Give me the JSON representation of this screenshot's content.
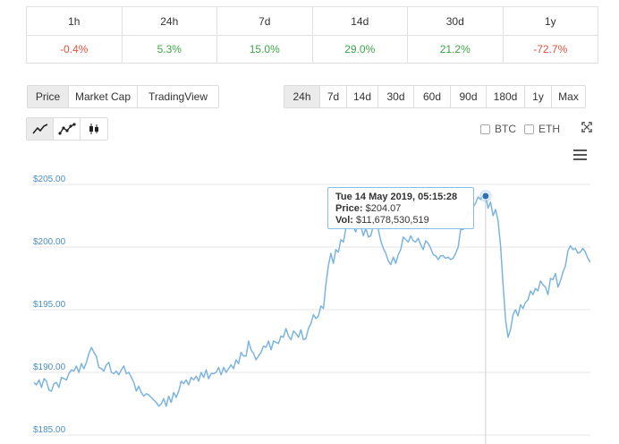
{
  "performance": {
    "headers": [
      "1h",
      "24h",
      "7d",
      "14d",
      "30d",
      "1y"
    ],
    "values": [
      "-0.4%",
      "5.3%",
      "15.0%",
      "29.0%",
      "21.2%",
      "-72.7%"
    ]
  },
  "metric_buttons": [
    "Price",
    "Market Cap",
    "TradingView"
  ],
  "active_metric": "Price",
  "range_buttons": [
    "24h",
    "7d",
    "14d",
    "30d",
    "60d",
    "90d",
    "180d",
    "1y",
    "Max"
  ],
  "active_range": "24h",
  "chart_type_icons": [
    "line-chart-icon",
    "line-with-markers-icon",
    "candlestick-icon"
  ],
  "compare": {
    "btc": "BTC",
    "eth": "ETH"
  },
  "icons": {
    "fullscreen": "fullscreen-icon",
    "menu": "hamburger-menu-icon"
  },
  "colors": {
    "negative": "#e15241",
    "positive": "#3ea54a",
    "line": "#7db4de",
    "axis_label": "#4a8fc5"
  },
  "tooltip": {
    "date": "Tue 14 May 2019, 05:15:28",
    "price_label": "Price:",
    "price_value": "$204.07",
    "vol_label": "Vol:",
    "vol_value": "$11,678,530,519"
  },
  "chart_data": {
    "type": "line",
    "title": "",
    "xlabel": "",
    "ylabel": "",
    "ylim": [
      185,
      205
    ],
    "yticks": [
      205,
      200,
      195,
      190,
      185
    ],
    "ytick_labels": [
      "$205.00",
      "$200.00",
      "$195.00",
      "$190.00",
      "$185.00"
    ],
    "grid": true,
    "highlighted_point": {
      "price": 204.07
    },
    "series": [
      {
        "values": [
          189.2,
          189.0,
          189.4,
          188.8,
          189.5,
          189.3,
          188.6,
          188.5,
          189.1,
          189.2,
          188.8,
          189.6,
          189.5,
          189.4,
          189.9,
          190.2,
          190.1,
          190.5,
          190.0,
          190.7,
          190.3,
          190.8,
          191.5,
          192.0,
          191.6,
          191.3,
          190.4,
          190.3,
          190.1,
          190.6,
          190.8,
          190.0,
          189.9,
          190.1,
          189.8,
          190.2,
          190.5,
          189.9,
          190.0,
          189.6,
          189.2,
          188.5,
          188.9,
          188.4,
          188.1,
          188.3,
          188.2,
          188.0,
          187.8,
          187.6,
          187.3,
          187.5,
          187.9,
          187.3,
          188.1,
          187.6,
          188.4,
          188.0,
          188.5,
          189.3,
          189.1,
          189.4,
          189.0,
          189.6,
          189.4,
          189.7,
          189.3,
          190.0,
          189.6,
          190.2,
          189.5,
          189.9,
          189.9,
          190.0,
          190.4,
          189.8,
          190.4,
          190.0,
          190.3,
          190.6,
          190.3,
          191.0,
          190.7,
          191.6,
          191.3,
          191.3,
          192.5,
          191.8,
          191.5,
          191.0,
          191.3,
          191.6,
          192.1,
          192.0,
          192.5,
          191.8,
          192.5,
          192.4,
          192.3,
          192.9,
          192.8,
          193.5,
          192.9,
          192.6,
          193.3,
          193.1,
          192.8,
          193.4,
          192.6,
          192.7,
          193.5,
          193.9,
          194.6,
          194.3,
          194.5,
          195.3,
          195.1,
          197.0,
          198.5,
          199.5,
          198.7,
          199.8,
          199.6,
          200.6,
          200.4,
          201.5,
          201.6,
          202.2,
          201.6,
          201.2,
          202.1,
          201.7,
          200.9,
          201.5,
          200.8,
          200.9,
          201.7,
          202.3,
          201.4,
          200.5,
          199.9,
          199.5,
          198.9,
          198.6,
          199.2,
          198.7,
          199.4,
          199.8,
          200.8,
          200.6,
          200.4,
          200.9,
          200.5,
          200.4,
          200.7,
          200.2,
          199.8,
          200.5,
          200.3,
          199.9,
          199.4,
          199.3,
          199.0,
          199.3,
          199.3,
          199.1,
          199.2,
          199.0,
          199.1,
          199.5,
          200.0,
          201.4,
          201.4,
          202.3,
          202.8,
          202.6,
          203.2,
          203.5,
          204.0,
          203.8,
          204.2,
          204.07,
          203.1,
          203.6,
          202.5,
          203.0,
          202.1,
          200.1,
          197.0,
          194.2,
          192.8,
          193.4,
          194.6,
          195.0,
          194.5,
          195.4,
          195.1,
          195.6,
          195.8,
          196.5,
          196.2,
          196.7,
          196.5,
          197.3,
          197.0,
          196.8,
          196.2,
          197.5,
          197.4,
          197.9,
          196.8,
          197.3,
          198.0,
          198.5,
          199.7,
          200.1,
          199.8,
          199.9,
          199.5,
          199.6,
          199.9,
          199.6,
          199.1,
          198.8
        ]
      }
    ]
  }
}
